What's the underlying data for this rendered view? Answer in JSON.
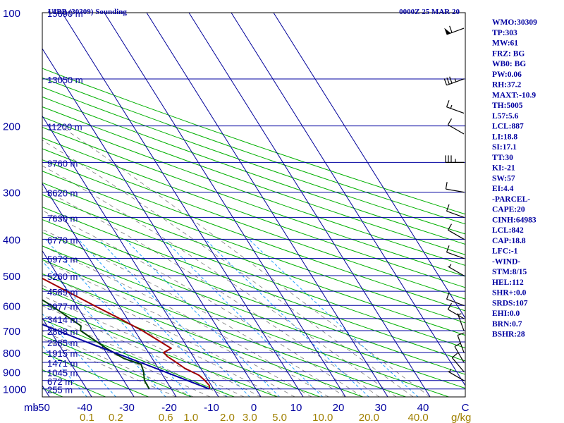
{
  "header": {
    "title_left": "UIBB (30309) Sounding",
    "title_right": "0000Z 25 MAR 20"
  },
  "colors": {
    "isobar": "#0000a0",
    "isotherm": "#00009a",
    "dry_adiabat": "#00b000",
    "moist_adiabat": "#7a7a7a",
    "mixing_ratio": "#22a0ff",
    "temperature": "#a00000",
    "dewpoint": "#004000",
    "parcel": "#0000a0",
    "wind_barb": "#000000",
    "text_blue": "#0000a0",
    "label_gold": "#a08000",
    "axis_black": "#000000"
  },
  "chart_data": {
    "type": "line",
    "title": "UIBB (30309) Sounding",
    "xlabel": "",
    "ylabel": "",
    "x_axis": {
      "temperature_ticks": [
        -50,
        -40,
        -30,
        -20,
        -10,
        0,
        10,
        20,
        30,
        40
      ],
      "temperature_labels": [
        "-50",
        "-40",
        "-30",
        "-20",
        "-10",
        "0",
        "10",
        "20",
        "30",
        "40"
      ],
      "unit_label_left": "mb",
      "unit_label_right": "C",
      "xlim_celsius": [
        -50,
        50
      ]
    },
    "y_axis": {
      "type": "log-pressure",
      "pressure_ticks": [
        100,
        200,
        300,
        400,
        500,
        600,
        700,
        800,
        900,
        1000
      ],
      "ylim_hpa": [
        100,
        1050
      ]
    },
    "height_labels": [
      {
        "p": 100,
        "label": "15690 m"
      },
      {
        "p": 150,
        "label": "13050 m"
      },
      {
        "p": 200,
        "label": "11200 m"
      },
      {
        "p": 250,
        "label": "9760 m"
      },
      {
        "p": 300,
        "label": "8620 m"
      },
      {
        "p": 350,
        "label": "7630 m"
      },
      {
        "p": 400,
        "label": "6770 m"
      },
      {
        "p": 450,
        "label": "5973 m"
      },
      {
        "p": 500,
        "label": "5260 m"
      },
      {
        "p": 550,
        "label": "4589 m"
      },
      {
        "p": 600,
        "label": "3977 m"
      },
      {
        "p": 650,
        "label": "3414 m"
      },
      {
        "p": 700,
        "label": "2888 m"
      },
      {
        "p": 750,
        "label": "2385 m"
      },
      {
        "p": 800,
        "label": "1915 m"
      },
      {
        "p": 850,
        "label": "1471 m"
      },
      {
        "p": 900,
        "label": "1045 m"
      },
      {
        "p": 950,
        "label": "672 m"
      },
      {
        "p": 1000,
        "label": "255 m"
      }
    ],
    "mixing_ratio_lines": [
      0.1,
      0.2,
      0.6,
      1.0,
      2.0,
      3.0,
      5.0,
      10.0,
      20.0,
      40.0
    ],
    "mixing_ratio_labels": [
      "0.1",
      "0.2",
      "0.6",
      "1.0",
      "2.0",
      "3.0",
      "5.0",
      "10.0",
      "20.0",
      "40.0"
    ],
    "mixing_ratio_unit": "g/kg",
    "series": [
      {
        "key": "temperature",
        "points": [
          {
            "p": 1000,
            "t": -11.0
          },
          {
            "p": 980,
            "t": -10.5
          },
          {
            "p": 950,
            "t": -10.8
          },
          {
            "p": 920,
            "t": -11.4
          },
          {
            "p": 880,
            "t": -13.8
          },
          {
            "p": 850,
            "t": -14.9
          },
          {
            "p": 820,
            "t": -16.1
          },
          {
            "p": 800,
            "t": -16.4
          },
          {
            "p": 780,
            "t": -14.0
          },
          {
            "p": 700,
            "t": -18.2
          },
          {
            "p": 650,
            "t": -21.8
          },
          {
            "p": 600,
            "t": -25.9
          },
          {
            "p": 500,
            "t": -34.9
          },
          {
            "p": 400,
            "t": -44.2
          },
          {
            "p": 350,
            "t": -49.3
          },
          {
            "p": 300,
            "t": -54.8
          },
          {
            "p": 250,
            "t": -56.6
          },
          {
            "p": 208,
            "t": -58.7
          },
          {
            "p": 200,
            "t": -59.2
          },
          {
            "p": 175,
            "t": -63.1
          },
          {
            "p": 150,
            "t": -64.9
          },
          {
            "p": 130,
            "t": -66.6
          },
          {
            "p": 100,
            "t": -65.5
          }
        ]
      },
      {
        "key": "dewpoint",
        "points": [
          {
            "p": 1000,
            "t": -25.2
          },
          {
            "p": 950,
            "t": -25.1
          },
          {
            "p": 900,
            "t": -24.0
          },
          {
            "p": 860,
            "t": -23.5
          },
          {
            "p": 830,
            "t": -26.7
          },
          {
            "p": 780,
            "t": -29.3
          },
          {
            "p": 700,
            "t": -32.8
          },
          {
            "p": 680,
            "t": -32.0
          },
          {
            "p": 600,
            "t": -36.0
          },
          {
            "p": 500,
            "t": -42.9
          },
          {
            "p": 400,
            "t": -51.2
          },
          {
            "p": 300,
            "t": -60.2
          },
          {
            "p": 250,
            "t": -63.1
          },
          {
            "p": 200,
            "t": -67.2
          },
          {
            "p": 175,
            "t": -73.0
          },
          {
            "p": 160,
            "t": -73.4
          },
          {
            "p": 150,
            "t": -74.2
          },
          {
            "p": 100,
            "t": -83.1
          }
        ]
      },
      {
        "key": "parcel",
        "points": [
          {
            "p": 1000,
            "t": -11.0
          },
          {
            "p": 950,
            "t": -14.9
          },
          {
            "p": 900,
            "t": -19.0
          },
          {
            "p": 850,
            "t": -23.4
          },
          {
            "p": 800,
            "t": -28.1
          },
          {
            "p": 750,
            "t": -33.1
          },
          {
            "p": 700,
            "t": -38.2
          },
          {
            "p": 650,
            "t": -43.5
          },
          {
            "p": 600,
            "t": -49.2
          },
          {
            "p": 550,
            "t": -55.3
          },
          {
            "p": 500,
            "t": -61.5
          },
          {
            "p": 450,
            "t": -68.2
          },
          {
            "p": 400,
            "t": -75.7
          },
          {
            "p": 350,
            "t": -83.6
          },
          {
            "p": 300,
            "t": -92.3
          },
          {
            "p": 250,
            "t": -102.4
          },
          {
            "p": 200,
            "t": -114.6
          },
          {
            "p": 150,
            "t": -130.1
          },
          {
            "p": 100,
            "t": -150.0
          }
        ]
      }
    ],
    "wind_barbs": [
      {
        "p": 110,
        "direction": 250,
        "speed": 60
      },
      {
        "p": 150,
        "direction": 250,
        "speed": 35
      },
      {
        "p": 185,
        "direction": 290,
        "speed": 15
      },
      {
        "p": 210,
        "direction": 300,
        "speed": 10
      },
      {
        "p": 250,
        "direction": 270,
        "speed": 35
      },
      {
        "p": 300,
        "direction": 280,
        "speed": 10
      },
      {
        "p": 350,
        "direction": 290,
        "speed": 10
      },
      {
        "p": 400,
        "direction": 300,
        "speed": 10
      },
      {
        "p": 450,
        "direction": 290,
        "speed": 10
      },
      {
        "p": 500,
        "direction": 300,
        "speed": 5
      },
      {
        "p": 600,
        "direction": 290,
        "speed": 10
      },
      {
        "p": 650,
        "direction": 300,
        "speed": 10
      },
      {
        "p": 700,
        "direction": 340,
        "speed": 5
      },
      {
        "p": 800,
        "direction": 340,
        "speed": 10
      },
      {
        "p": 850,
        "direction": 330,
        "speed": 10
      },
      {
        "p": 900,
        "direction": 320,
        "speed": 10
      },
      {
        "p": 950,
        "direction": 300,
        "speed": 5
      }
    ]
  },
  "indices": [
    "WMO:30309",
    "TP:303",
    "MW:61",
    "FRZ: BG",
    "WB0: BG",
    "PW:0.06",
    "RH:37.2",
    "MAXT:-10.9",
    "TH:5005",
    "L57:5.6",
    "LCL:887",
    "LI:18.8",
    "SI:17.1",
    "TT:30",
    "KI:-21",
    "SW:57",
    "EI:4.4",
    "-PARCEL-",
    "CAPE:20",
    "CINH:64983",
    "LCL:842",
    "CAP:18.8",
    "LFC:-1",
    "-WIND-",
    "STM:8/15",
    "HEL:112",
    "SHR+:0.0",
    "SRDS:107",
    "EHI:0.0",
    "BRN:0.7",
    "BSHR:28"
  ]
}
